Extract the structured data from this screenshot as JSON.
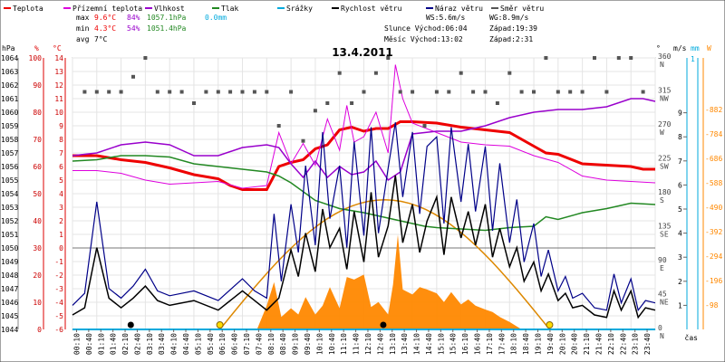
{
  "chart_data": {
    "type": "line",
    "title": "13.4.2011",
    "legend": [
      {
        "name": "Teplota",
        "color": "#ee0000"
      },
      {
        "name": "Přízemní teplota",
        "color": "#dd00dd"
      },
      {
        "name": "Vlhkost",
        "color": "#9900cc"
      },
      {
        "name": "Tlak",
        "color": "#228822"
      },
      {
        "name": "Srážky",
        "color": "#00aadd"
      },
      {
        "name": "Rychlost větru",
        "color": "#000000"
      },
      {
        "name": "Náraz větru",
        "color": "#000088"
      },
      {
        "name": "Směr větru",
        "color": "#555555"
      }
    ],
    "stats": {
      "max": {
        "label": "max",
        "temp": "9.6°C",
        "hum": "84%",
        "press": "1057.1hPa",
        "rain": "0.0mm"
      },
      "min": {
        "label": "min",
        "temp": "4.3°C",
        "hum": "54%",
        "press": "1051.4hPa"
      },
      "avg": {
        "label": "avg",
        "temp": "7°C"
      }
    },
    "info": {
      "ws": "WS:5.6m/s",
      "wg": "WG:8.9m/s",
      "sun": "Slunce Východ:06:04",
      "sun_set": "Západ:19:39",
      "moon": "Měsíc Východ:13:02",
      "moon_set": "Západ:2:31"
    },
    "axes": {
      "hpa": {
        "unit": "hPa",
        "ticks": [
          "1064",
          "1063",
          "1062",
          "1061",
          "1060",
          "1059",
          "1058",
          "1057",
          "1056",
          "1055",
          "1054",
          "1053",
          "1052",
          "1051",
          "1050",
          "1049",
          "1048",
          "1047",
          "1046",
          "1045",
          "1044"
        ]
      },
      "pct": {
        "unit": "%",
        "ticks": [
          "100",
          "",
          "90",
          "",
          "80",
          "",
          "70",
          "",
          "60",
          "",
          "50",
          "",
          "40",
          "",
          "30",
          "",
          "20",
          "",
          "10",
          "",
          "0"
        ]
      },
      "degc": {
        "unit": "°C",
        "ticks": [
          "14",
          "13",
          "12",
          "11",
          "10",
          "9",
          "8",
          "7",
          "6",
          "5",
          "4",
          "3",
          "2",
          "1",
          "0",
          "-1",
          "-2",
          "-3",
          "-4",
          "-5",
          "-6"
        ]
      },
      "dir": {
        "unit": "°",
        "ticks": [
          {
            "v": "360",
            "l": "N"
          },
          {
            "v": "315",
            "l": "NW"
          },
          {
            "v": "270",
            "l": "W"
          },
          {
            "v": "225",
            "l": "SW"
          },
          {
            "v": "180",
            "l": "S"
          },
          {
            "v": "135",
            "l": "SE"
          },
          {
            "v": "90",
            "l": "E"
          },
          {
            "v": "45",
            "l": "NE"
          },
          {
            "v": "0",
            "l": "N"
          }
        ]
      },
      "ms": {
        "unit": "m/s",
        "ticks": [
          "9",
          "8",
          "7",
          "6",
          "5",
          "4",
          "3",
          "2",
          "1"
        ],
        "top": "1"
      },
      "mm": {
        "unit": "mm"
      },
      "wm2": {
        "unit": "W",
        "ticks": [
          "882",
          "784",
          "686",
          "588",
          "490",
          "392",
          "294",
          "196",
          "98"
        ]
      },
      "time_unit": "čas",
      "x_ticks": [
        "00:10",
        "00:40",
        "01:10",
        "01:40",
        "02:10",
        "02:40",
        "03:10",
        "03:40",
        "04:10",
        "04:40",
        "05:10",
        "05:40",
        "06:10",
        "06:40",
        "07:10",
        "07:40",
        "08:10",
        "08:40",
        "09:10",
        "09:40",
        "10:10",
        "10:40",
        "11:10",
        "11:40",
        "12:10",
        "12:40",
        "13:10",
        "13:40",
        "14:10",
        "14:40",
        "15:10",
        "15:40",
        "16:10",
        "16:40",
        "17:10",
        "17:40",
        "18:10",
        "18:40",
        "19:10",
        "19:40",
        "20:10",
        "20:40",
        "21:10",
        "21:40",
        "22:10",
        "22:40",
        "23:10",
        "23:40"
      ]
    },
    "series": [
      {
        "name": "Teplota",
        "unit": "°C",
        "x": [
          0,
          1,
          2,
          3,
          4,
          5,
          6,
          6.5,
          7,
          7.5,
          8,
          8.5,
          9,
          9.5,
          10,
          10.5,
          11,
          11.5,
          12,
          12.5,
          13,
          13.5,
          14,
          15,
          16,
          17,
          18,
          19,
          19.5,
          20,
          21,
          22,
          23,
          23.5,
          24
        ],
        "y": [
          6.8,
          6.8,
          6.5,
          6.3,
          5.9,
          5.4,
          5.1,
          4.6,
          4.3,
          4.3,
          4.3,
          6.0,
          6.3,
          6.5,
          7.3,
          7.6,
          8.7,
          8.9,
          8.6,
          8.8,
          8.8,
          9.3,
          9.3,
          9.2,
          8.9,
          8.7,
          8.5,
          7.5,
          7.0,
          6.9,
          6.2,
          6.1,
          6.0,
          5.8,
          5.8
        ]
      },
      {
        "name": "Přízemní teplota",
        "unit": "°C",
        "x": [
          0,
          1,
          2,
          3,
          4,
          5,
          6,
          7,
          7.5,
          8,
          8.5,
          9,
          9.5,
          10,
          10.5,
          11,
          11.3,
          11.6,
          12,
          12.5,
          13,
          13.3,
          13.6,
          14,
          15,
          16,
          17,
          18,
          19,
          20,
          21,
          22,
          23,
          24
        ],
        "y": [
          5.7,
          5.7,
          5.5,
          5.0,
          4.7,
          4.8,
          4.9,
          4.4,
          4.5,
          4.6,
          8.5,
          6.2,
          7.7,
          6.1,
          9.5,
          7.2,
          10.5,
          7.8,
          8.2,
          10.0,
          7.0,
          13.5,
          11.0,
          9.2,
          8.5,
          7.8,
          7.6,
          7.5,
          6.8,
          6.3,
          5.3,
          5.0,
          4.9,
          4.8
        ]
      },
      {
        "name": "Vlhkost",
        "unit": "%",
        "x": [
          0,
          1,
          2,
          3,
          4,
          5,
          6,
          7,
          8,
          8.5,
          9,
          9.5,
          10,
          10.5,
          11,
          11.5,
          12,
          12.5,
          13,
          13.5,
          14,
          15,
          16,
          17,
          18,
          19,
          20,
          21,
          22,
          23,
          23.5,
          24
        ],
        "y": [
          64,
          65,
          68,
          69,
          68,
          64,
          64,
          67,
          68,
          67,
          61,
          56,
          62,
          56,
          60,
          57,
          58,
          62,
          55,
          58,
          72,
          73,
          73,
          75,
          78,
          80,
          81,
          81,
          82,
          85,
          85,
          84
        ]
      },
      {
        "name": "Tlak",
        "unit": "hPa",
        "x": [
          0,
          1,
          2,
          3,
          4,
          5,
          6,
          7,
          8,
          8.5,
          9,
          10,
          11,
          12,
          13,
          14,
          14.5,
          15,
          16,
          17,
          18,
          19,
          19.5,
          20,
          21,
          22,
          23,
          24
        ],
        "y": [
          1056.4,
          1056.5,
          1056.8,
          1056.8,
          1056.7,
          1056.2,
          1056.0,
          1055.8,
          1055.6,
          1055.3,
          1054.8,
          1053.5,
          1052.9,
          1052.6,
          1052.2,
          1051.8,
          1051.6,
          1051.5,
          1051.4,
          1051.3,
          1051.5,
          1051.6,
          1052.3,
          1052.1,
          1052.6,
          1052.9,
          1053.3,
          1053.2
        ]
      },
      {
        "name": "Rychlost větru",
        "unit": "m/s",
        "x": [
          0,
          0.5,
          1,
          1.5,
          2,
          2.5,
          3,
          3.5,
          4,
          5,
          6,
          7,
          7.5,
          8,
          8.5,
          9,
          9.3,
          9.6,
          10,
          10.3,
          10.6,
          11,
          11.3,
          11.6,
          12,
          12.3,
          12.6,
          13,
          13.3,
          13.6,
          14,
          14.3,
          14.6,
          15,
          15.3,
          15.6,
          16,
          16.3,
          16.6,
          17,
          17.3,
          17.6,
          18,
          18.3,
          18.6,
          19,
          19.3,
          19.6,
          20,
          20.3,
          20.6,
          21,
          21.5,
          22,
          22.3,
          22.6,
          23,
          23.3,
          23.6,
          24
        ],
        "y": [
          0.6,
          0.9,
          3.4,
          1.3,
          0.9,
          1.3,
          1.8,
          1.2,
          1.0,
          1.2,
          0.8,
          1.6,
          1.2,
          0.8,
          1.3,
          3.3,
          2.2,
          4.0,
          2.4,
          5.0,
          3.4,
          4.2,
          2.5,
          4.9,
          2.8,
          5.7,
          3.0,
          4.3,
          6.4,
          3.6,
          5.2,
          3.2,
          4.5,
          5.5,
          3.1,
          5.5,
          3.8,
          4.9,
          3.5,
          5.2,
          3.0,
          4.2,
          2.6,
          3.4,
          2.0,
          2.8,
          1.6,
          2.3,
          1.2,
          1.5,
          0.9,
          1.0,
          0.6,
          0.5,
          1.6,
          0.8,
          1.6,
          0.5,
          0.9,
          0.8
        ]
      },
      {
        "name": "Náraz větru",
        "unit": "m/s",
        "x": [
          0,
          0.5,
          1,
          1.5,
          2,
          2.5,
          3,
          3.5,
          4,
          5,
          6,
          7,
          7.5,
          8,
          8.3,
          8.6,
          9,
          9.3,
          9.6,
          10,
          10.3,
          10.6,
          11,
          11.3,
          11.6,
          12,
          12.3,
          12.6,
          13,
          13.3,
          13.6,
          14,
          14.3,
          14.6,
          15,
          15.3,
          15.6,
          16,
          16.3,
          16.6,
          17,
          17.3,
          17.6,
          18,
          18.3,
          18.6,
          19,
          19.3,
          19.6,
          20,
          20.3,
          20.6,
          21,
          21.5,
          22,
          22.3,
          22.6,
          23,
          23.3,
          23.6,
          24
        ],
        "y": [
          1.0,
          1.5,
          5.3,
          1.7,
          1.3,
          1.8,
          2.5,
          1.6,
          1.4,
          1.6,
          1.2,
          2.1,
          1.6,
          1.3,
          4.8,
          2.0,
          5.2,
          3.2,
          6.8,
          3.5,
          8.2,
          4.6,
          6.8,
          3.4,
          7.8,
          3.9,
          8.4,
          4.0,
          6.7,
          8.6,
          5.5,
          8.2,
          4.8,
          7.6,
          8.0,
          4.4,
          8.4,
          5.3,
          7.7,
          4.9,
          7.6,
          4.1,
          6.9,
          3.6,
          5.4,
          2.8,
          4.4,
          2.2,
          3.3,
          1.6,
          2.2,
          1.3,
          1.5,
          0.9,
          0.8,
          2.3,
          1.1,
          2.1,
          0.8,
          1.2,
          1.1
        ]
      },
      {
        "name": "Směr větru",
        "unit": "°",
        "x": [
          0.5,
          1,
          1.5,
          2,
          2.5,
          3,
          3.5,
          4,
          4.5,
          5,
          5.5,
          6,
          6.5,
          7,
          7.5,
          8,
          8.5,
          9,
          9.5,
          10,
          10.5,
          11,
          11.5,
          12,
          12.5,
          13,
          13.5,
          14,
          14.5,
          15,
          15.5,
          16,
          16.5,
          17,
          17.5,
          18,
          18.5,
          19,
          19.5,
          20,
          20.5,
          21,
          21.5,
          22,
          22.5,
          23,
          23.5
        ],
        "y": [
          315,
          315,
          315,
          315,
          335,
          360,
          315,
          315,
          315,
          300,
          315,
          315,
          315,
          315,
          315,
          315,
          270,
          315,
          250,
          290,
          300,
          340,
          300,
          315,
          340,
          360,
          315,
          315,
          270,
          315,
          315,
          340,
          315,
          315,
          300,
          340,
          315,
          315,
          360,
          315,
          315,
          315,
          360,
          315,
          360,
          360,
          315
        ]
      },
      {
        "name": "Srážky",
        "unit": "mm",
        "x": [
          0,
          24
        ],
        "y": [
          0,
          0
        ]
      }
    ],
    "solar": {
      "unit": "W",
      "x": [
        7.6,
        8,
        8.3,
        8.6,
        9,
        9.3,
        9.6,
        10,
        10.3,
        10.6,
        11,
        11.3,
        11.6,
        12,
        12.3,
        12.6,
        13,
        13.2,
        13.4,
        13.6,
        14,
        14.3,
        14.6,
        15,
        15.3,
        15.6,
        16,
        16.3,
        16.6,
        17,
        17.3,
        17.6,
        18,
        18.5
      ],
      "y": [
        0,
        95,
        190,
        50,
        85,
        60,
        130,
        60,
        95,
        170,
        85,
        210,
        200,
        220,
        90,
        110,
        60,
        180,
        380,
        160,
        140,
        170,
        160,
        145,
        110,
        150,
        100,
        120,
        95,
        80,
        70,
        50,
        30,
        0
      ]
    },
    "sun_curve": {
      "rise": 6.07,
      "set": 19.65,
      "peak": 520
    },
    "markers": [
      {
        "t": 2.4,
        "kind": "dot"
      },
      {
        "t": 6.07,
        "kind": "sun"
      },
      {
        "t": 12.8,
        "kind": "dot"
      },
      {
        "t": 19.65,
        "kind": "sun"
      }
    ]
  }
}
